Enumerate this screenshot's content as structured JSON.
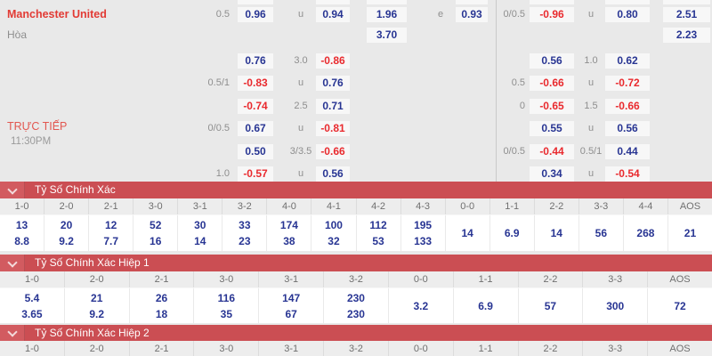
{
  "match": {
    "home_team": "Manchester United",
    "draw_label": "Hòa",
    "live_label": "TRỰC TIẾP",
    "time": "11:30PM"
  },
  "odds_rows": [
    {
      "lLabel": "0.5",
      "lc1": "0.96",
      "lMid": "u",
      "lc2": "0.94",
      "x1": "1.96",
      "eMid": "e",
      "x2": "0.93",
      "rLabel": "0/0.5",
      "rc1": "-0.96",
      "rMid": "u",
      "rc2": "0.80",
      "last": "2.51"
    },
    {
      "x1": "3.70",
      "last": "2.23"
    },
    {
      "lc1": "0.76",
      "lMid": "3.0",
      "lc2": "-0.86",
      "rc1": "0.56",
      "rMid": "1.0",
      "rc2": "0.62"
    },
    {
      "lLabel": "0.5/1",
      "lc1": "-0.83",
      "lMid": "u",
      "lc2": "0.76",
      "rLabel": "0.5",
      "rc1": "-0.66",
      "rMid": "u",
      "rc2": "-0.72"
    },
    {
      "lc1": "-0.74",
      "lMid": "2.5",
      "lc2": "0.71",
      "rLabel": "0",
      "rc1": "-0.65",
      "rMid": "1.5",
      "rc2": "-0.66"
    },
    {
      "lLabel": "0/0.5",
      "lc1": "0.67",
      "lMid": "u",
      "lc2": "-0.81",
      "rc1": "0.55",
      "rMid": "u",
      "rc2": "0.56"
    },
    {
      "lc1": "0.50",
      "lMid": "3/3.5",
      "lc2": "-0.66",
      "rLabel": "0/0.5",
      "rc1": "-0.44",
      "rMid": "0.5/1",
      "rc2": "0.44"
    },
    {
      "lLabel": "1.0",
      "lc1": "-0.57",
      "lMid": "u",
      "lc2": "0.56",
      "rc1": "0.34",
      "rMid": "u",
      "rc2": "-0.54"
    }
  ],
  "score_tables": [
    {
      "title": "Tỷ Số Chính Xác",
      "columns": [
        "1-0",
        "2-0",
        "2-1",
        "3-0",
        "3-1",
        "3-2",
        "4-0",
        "4-1",
        "4-2",
        "4-3",
        "0-0",
        "1-1",
        "2-2",
        "3-3",
        "4-4",
        "AOS"
      ],
      "values": [
        [
          "13",
          "8.8"
        ],
        [
          "20",
          "9.2"
        ],
        [
          "12",
          "7.7"
        ],
        [
          "52",
          "16"
        ],
        [
          "30",
          "14"
        ],
        [
          "33",
          "23"
        ],
        [
          "174",
          "38"
        ],
        [
          "100",
          "32"
        ],
        [
          "112",
          "53"
        ],
        [
          "195",
          "133"
        ],
        [
          "14"
        ],
        [
          "6.9"
        ],
        [
          "14"
        ],
        [
          "56"
        ],
        [
          "268"
        ],
        [
          "21"
        ]
      ]
    },
    {
      "title": "Tỷ Số Chính Xác Hiệp 1",
      "columns": [
        "1-0",
        "2-0",
        "2-1",
        "3-0",
        "3-1",
        "3-2",
        "0-0",
        "1-1",
        "2-2",
        "3-3",
        "AOS"
      ],
      "values": [
        [
          "5.4",
          "3.65"
        ],
        [
          "21",
          "9.2"
        ],
        [
          "26",
          "18"
        ],
        [
          "116",
          "35"
        ],
        [
          "147",
          "67"
        ],
        [
          "230",
          "230"
        ],
        [
          "3.2"
        ],
        [
          "6.9"
        ],
        [
          "57"
        ],
        [
          "300"
        ],
        [
          "72"
        ]
      ]
    },
    {
      "title": "Tỷ Số Chính Xác Hiệp 2",
      "columns": [
        "1-0",
        "2-0",
        "2-1",
        "3-0",
        "3-1",
        "3-2",
        "0-0",
        "1-1",
        "2-2",
        "3-3",
        "AOS"
      ],
      "values": []
    }
  ],
  "icons": {
    "section_toggle": "chevron-down-icon"
  },
  "colors": {
    "section_bar_red": "#cb4e53",
    "odds_blue": "#283593",
    "odds_red": "#e92a2e",
    "team_red": "#e23b35",
    "live_red": "#e25750",
    "page_bg": "#e9e9e9"
  }
}
